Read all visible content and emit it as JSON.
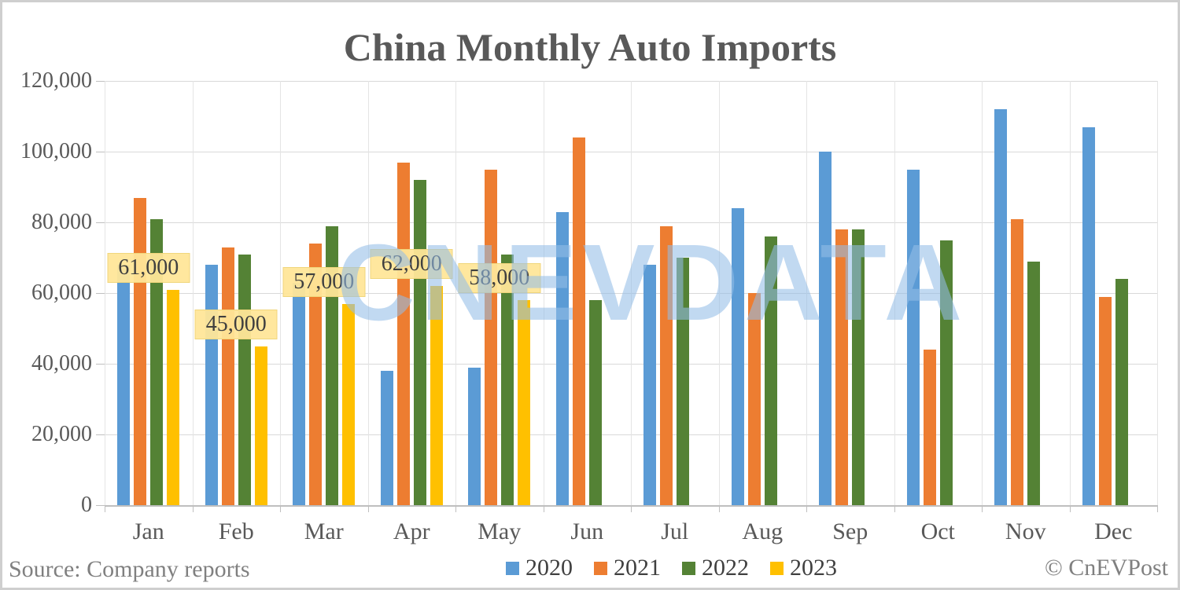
{
  "title": "China Monthly Auto Imports",
  "watermark": "CNEVDATA",
  "footer": {
    "source": "Source: Company reports",
    "credit": "© CnEVPost"
  },
  "axis": {
    "y_tick_labels": [
      "120,000",
      "100,000",
      "80,000",
      "60,000",
      "40,000",
      "20,000",
      "0"
    ],
    "y_max": 120000,
    "y_step": 20000
  },
  "colors": {
    "series_2020": "#5B9BD5",
    "series_2021": "#ED7D31",
    "series_2022": "#548235",
    "series_2023": "#FFC000",
    "gridline": "#D9D9D9",
    "axis_text": "#595959",
    "label_box_bg": "#FFE699",
    "watermark_blue": "#94BEE7"
  },
  "chart_data": {
    "type": "bar",
    "title": "China Monthly Auto Imports",
    "xlabel": "",
    "ylabel": "",
    "ylim": [
      0,
      120000
    ],
    "grid": true,
    "legend_position": "bottom",
    "categories": [
      "Jan",
      "Feb",
      "Mar",
      "Apr",
      "May",
      "Jun",
      "Jul",
      "Aug",
      "Sep",
      "Oct",
      "Nov",
      "Dec"
    ],
    "series": [
      {
        "name": "2020",
        "color": "#5B9BD5",
        "values": [
          68000,
          68000,
          63000,
          38000,
          39000,
          83000,
          68000,
          84000,
          100000,
          95000,
          112000,
          107000
        ]
      },
      {
        "name": "2021",
        "color": "#ED7D31",
        "values": [
          87000,
          73000,
          74000,
          97000,
          95000,
          104000,
          79000,
          60000,
          78000,
          44000,
          81000,
          59000
        ]
      },
      {
        "name": "2022",
        "color": "#548235",
        "values": [
          81000,
          71000,
          79000,
          92000,
          71000,
          58000,
          70000,
          76000,
          78000,
          75000,
          69000,
          64000
        ]
      },
      {
        "name": "2023",
        "color": "#FFC000",
        "values": [
          61000,
          45000,
          57000,
          62000,
          58000,
          null,
          null,
          null,
          null,
          null,
          null,
          null
        ],
        "data_labels": [
          "61,000",
          "45,000",
          "57,000",
          "62,000",
          "58,000",
          null,
          null,
          null,
          null,
          null,
          null,
          null
        ]
      }
    ]
  }
}
